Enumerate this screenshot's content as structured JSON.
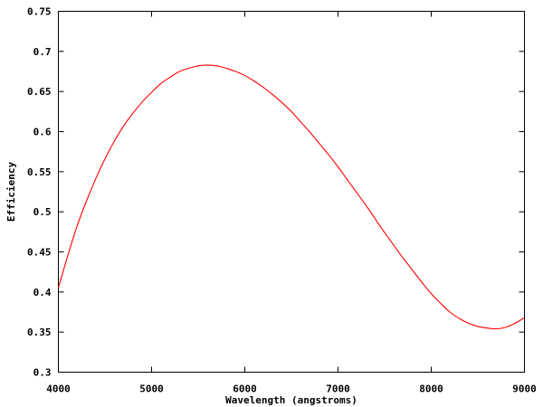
{
  "chart_data": {
    "type": "line",
    "title": "",
    "xlabel": "Wavelength (angstroms)",
    "ylabel": "Efficiency",
    "xlim": [
      4000,
      9000
    ],
    "ylim": [
      0.3,
      0.75
    ],
    "x_ticks": [
      "4000",
      "5000",
      "6000",
      "7000",
      "8000",
      "9000"
    ],
    "y_ticks": [
      "0.3",
      "0.35",
      "0.4",
      "0.45",
      "0.5",
      "0.55",
      "0.6",
      "0.65",
      "0.7",
      "0.75"
    ],
    "grid": false,
    "legend": "none",
    "series": [
      {
        "color": "#ff0000",
        "x": [
          4000,
          4100,
          4200,
          4300,
          4400,
          4500,
          4600,
          4700,
          4800,
          4900,
          5000,
          5100,
          5200,
          5300,
          5400,
          5500,
          5600,
          5700,
          5800,
          5900,
          6000,
          6100,
          6200,
          6300,
          6400,
          6500,
          6600,
          6700,
          6800,
          6900,
          7000,
          7100,
          7200,
          7300,
          7400,
          7500,
          7600,
          7700,
          7800,
          7900,
          8000,
          8100,
          8200,
          8300,
          8400,
          8500,
          8600,
          8700,
          8800,
          8900,
          9000
        ],
        "y": [
          0.405,
          0.445,
          0.482,
          0.513,
          0.541,
          0.566,
          0.588,
          0.607,
          0.623,
          0.637,
          0.649,
          0.66,
          0.668,
          0.675,
          0.679,
          0.682,
          0.683,
          0.682,
          0.679,
          0.675,
          0.67,
          0.663,
          0.655,
          0.646,
          0.636,
          0.625,
          0.612,
          0.599,
          0.585,
          0.571,
          0.556,
          0.54,
          0.524,
          0.508,
          0.491,
          0.474,
          0.458,
          0.442,
          0.427,
          0.412,
          0.398,
          0.386,
          0.375,
          0.367,
          0.361,
          0.357,
          0.355,
          0.354,
          0.356,
          0.361,
          0.368
        ]
      }
    ]
  }
}
